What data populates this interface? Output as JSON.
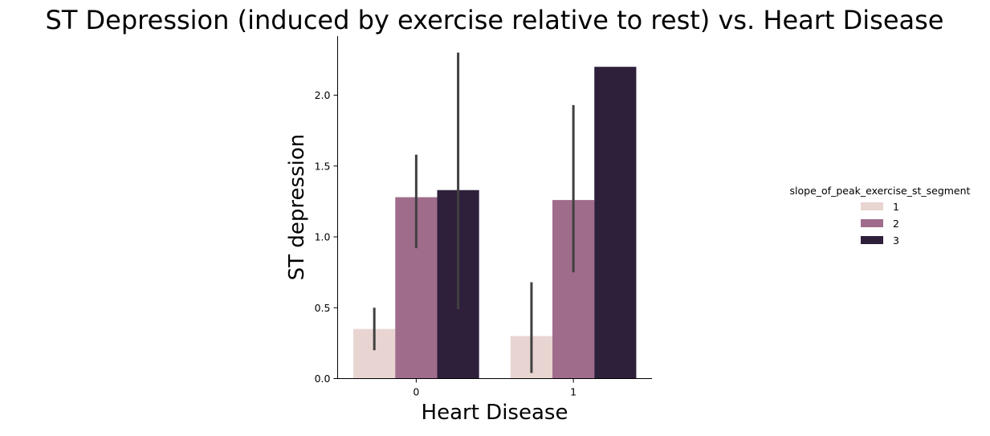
{
  "chart_data": {
    "type": "bar",
    "title": "ST Depression (induced by exercise relative to rest) vs. Heart Disease",
    "xlabel": "Heart Disease",
    "ylabel": "ST depression",
    "categories": [
      "0",
      "1"
    ],
    "ylim": [
      0,
      2.42
    ],
    "yticks": [
      0.0,
      0.5,
      1.0,
      1.5,
      2.0
    ],
    "ytick_labels": [
      "0.0",
      "0.5",
      "1.0",
      "1.5",
      "2.0"
    ],
    "grid": false,
    "legend": {
      "title": "slope_of_peak_exercise_st_segment",
      "placement": "center-right"
    },
    "series": [
      {
        "name": "1",
        "color": "#e8d5d1",
        "values": [
          0.35,
          0.3
        ],
        "ci_low": [
          0.2,
          0.04
        ],
        "ci_high": [
          0.5,
          0.68
        ]
      },
      {
        "name": "2",
        "color": "#a06c8b",
        "values": [
          1.28,
          1.26
        ],
        "ci_low": [
          0.92,
          0.75
        ],
        "ci_high": [
          1.58,
          1.93
        ]
      },
      {
        "name": "3",
        "color": "#2e1f3b",
        "values": [
          1.33,
          2.2
        ],
        "ci_low": [
          0.49,
          null
        ],
        "ci_high": [
          2.3,
          null
        ]
      }
    ],
    "errorbar_color": "#404040"
  }
}
